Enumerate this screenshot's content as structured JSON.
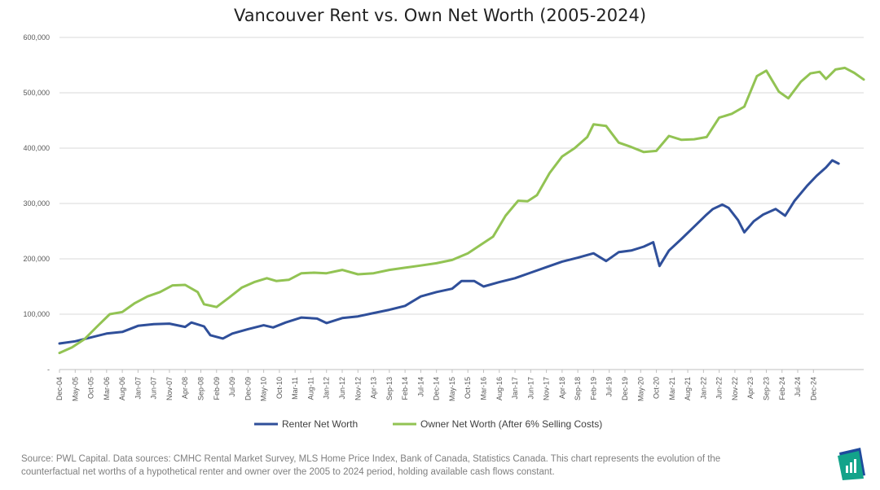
{
  "chart_data": {
    "type": "line",
    "title": "Vancouver Rent vs. Own Net Worth (2005-2024)",
    "xlabel": "",
    "ylabel": "",
    "ylim": [
      0,
      600000
    ],
    "y_ticks": [
      {
        "value": 0,
        "label": "-"
      },
      {
        "value": 100000,
        "label": "100,000"
      },
      {
        "value": 200000,
        "label": "200,000"
      },
      {
        "value": 300000,
        "label": "300,000"
      },
      {
        "value": 400000,
        "label": "400,000"
      },
      {
        "value": 500000,
        "label": "500,000"
      },
      {
        "value": 600000,
        "label": "600,000"
      }
    ],
    "grid": true,
    "legend": "bottom",
    "x_start": "Dec-04",
    "x_months": 240,
    "x_ticks": [
      "Dec-04",
      "May-05",
      "Oct-05",
      "Mar-06",
      "Aug-06",
      "Jan-07",
      "Jun-07",
      "Nov-07",
      "Apr-08",
      "Sep-08",
      "Feb-09",
      "Jul-09",
      "Dec-09",
      "May-10",
      "Oct-10",
      "Mar-11",
      "Aug-11",
      "Jan-12",
      "Jun-12",
      "Nov-12",
      "Apr-13",
      "Sep-13",
      "Feb-14",
      "Jul-14",
      "Dec-14",
      "May-15",
      "Oct-15",
      "Mar-16",
      "Aug-16",
      "Jan-17",
      "Jun-17",
      "Nov-17",
      "Apr-18",
      "Sep-18",
      "Feb-19",
      "Jul-19",
      "Dec-19",
      "May-20",
      "Oct-20",
      "Mar-21",
      "Aug-21",
      "Jan-22",
      "Jun-22",
      "Nov-22",
      "Apr-23",
      "Sep-23",
      "Feb-24",
      "Jul-24",
      "Dec-24"
    ],
    "series": [
      {
        "name": "Renter Net Worth",
        "color": "#2f4f9a",
        "points": [
          [
            0,
            47000
          ],
          [
            5,
            51000
          ],
          [
            10,
            58000
          ],
          [
            15,
            65000
          ],
          [
            20,
            68000
          ],
          [
            25,
            79000
          ],
          [
            30,
            82000
          ],
          [
            35,
            83000
          ],
          [
            40,
            77000
          ],
          [
            42,
            85000
          ],
          [
            46,
            78000
          ],
          [
            48,
            62000
          ],
          [
            52,
            56000
          ],
          [
            55,
            65000
          ],
          [
            60,
            73000
          ],
          [
            65,
            80000
          ],
          [
            68,
            76000
          ],
          [
            72,
            85000
          ],
          [
            77,
            94000
          ],
          [
            82,
            92000
          ],
          [
            85,
            84000
          ],
          [
            90,
            93000
          ],
          [
            95,
            96000
          ],
          [
            100,
            102000
          ],
          [
            105,
            108000
          ],
          [
            110,
            115000
          ],
          [
            115,
            132000
          ],
          [
            120,
            140000
          ],
          [
            125,
            146000
          ],
          [
            128,
            160000
          ],
          [
            132,
            160000
          ],
          [
            135,
            150000
          ],
          [
            140,
            158000
          ],
          [
            145,
            165000
          ],
          [
            150,
            175000
          ],
          [
            155,
            185000
          ],
          [
            160,
            195000
          ],
          [
            165,
            202000
          ],
          [
            170,
            210000
          ],
          [
            174,
            196000
          ],
          [
            178,
            212000
          ],
          [
            182,
            215000
          ],
          [
            186,
            222000
          ],
          [
            189,
            230000
          ],
          [
            191,
            187000
          ],
          [
            194,
            215000
          ],
          [
            198,
            236000
          ],
          [
            202,
            258000
          ],
          [
            206,
            280000
          ],
          [
            208,
            290000
          ],
          [
            211,
            298000
          ],
          [
            213,
            292000
          ],
          [
            216,
            270000
          ],
          [
            218,
            248000
          ],
          [
            221,
            268000
          ],
          [
            224,
            280000
          ],
          [
            228,
            290000
          ],
          [
            231,
            278000
          ],
          [
            234,
            305000
          ],
          [
            238,
            332000
          ],
          [
            241,
            350000
          ],
          [
            244,
            365000
          ],
          [
            246,
            378000
          ],
          [
            248,
            372000
          ]
        ]
      },
      {
        "name": "Owner Net Worth (After 6% Selling Costs)",
        "color": "#92c353",
        "points": [
          [
            0,
            30000
          ],
          [
            4,
            40000
          ],
          [
            8,
            55000
          ],
          [
            12,
            78000
          ],
          [
            16,
            100000
          ],
          [
            20,
            104000
          ],
          [
            24,
            120000
          ],
          [
            28,
            132000
          ],
          [
            32,
            140000
          ],
          [
            36,
            152000
          ],
          [
            40,
            153000
          ],
          [
            44,
            140000
          ],
          [
            46,
            118000
          ],
          [
            50,
            113000
          ],
          [
            54,
            130000
          ],
          [
            58,
            148000
          ],
          [
            62,
            158000
          ],
          [
            66,
            165000
          ],
          [
            69,
            160000
          ],
          [
            73,
            162000
          ],
          [
            77,
            174000
          ],
          [
            81,
            175000
          ],
          [
            85,
            174000
          ],
          [
            90,
            180000
          ],
          [
            95,
            172000
          ],
          [
            100,
            174000
          ],
          [
            105,
            180000
          ],
          [
            110,
            184000
          ],
          [
            115,
            188000
          ],
          [
            120,
            192000
          ],
          [
            125,
            198000
          ],
          [
            130,
            210000
          ],
          [
            134,
            225000
          ],
          [
            138,
            240000
          ],
          [
            142,
            278000
          ],
          [
            146,
            305000
          ],
          [
            149,
            304000
          ],
          [
            152,
            315000
          ],
          [
            156,
            355000
          ],
          [
            160,
            385000
          ],
          [
            164,
            400000
          ],
          [
            168,
            420000
          ],
          [
            170,
            443000
          ],
          [
            174,
            440000
          ],
          [
            178,
            410000
          ],
          [
            182,
            402000
          ],
          [
            186,
            393000
          ],
          [
            190,
            395000
          ],
          [
            194,
            422000
          ],
          [
            198,
            415000
          ],
          [
            202,
            416000
          ],
          [
            206,
            420000
          ],
          [
            210,
            455000
          ],
          [
            214,
            462000
          ],
          [
            218,
            475000
          ],
          [
            222,
            530000
          ],
          [
            225,
            540000
          ],
          [
            229,
            502000
          ],
          [
            232,
            490000
          ],
          [
            236,
            520000
          ],
          [
            239,
            535000
          ],
          [
            242,
            538000
          ],
          [
            244,
            525000
          ],
          [
            247,
            542000
          ],
          [
            250,
            545000
          ],
          [
            253,
            536000
          ],
          [
            256,
            524000
          ]
        ]
      }
    ]
  },
  "source_text": "Source: PWL Capital. Data sources: CMHC Rental Market Survey, MLS Home Price Index, Bank of Canada, Statistics Canada. This chart represents the evolution of the counterfactual net worths of a hypothetical renter and owner over the 2005 to 2024 period, holding available cash flows constant.",
  "logo_icon": "pwl-capital-logo-icon"
}
